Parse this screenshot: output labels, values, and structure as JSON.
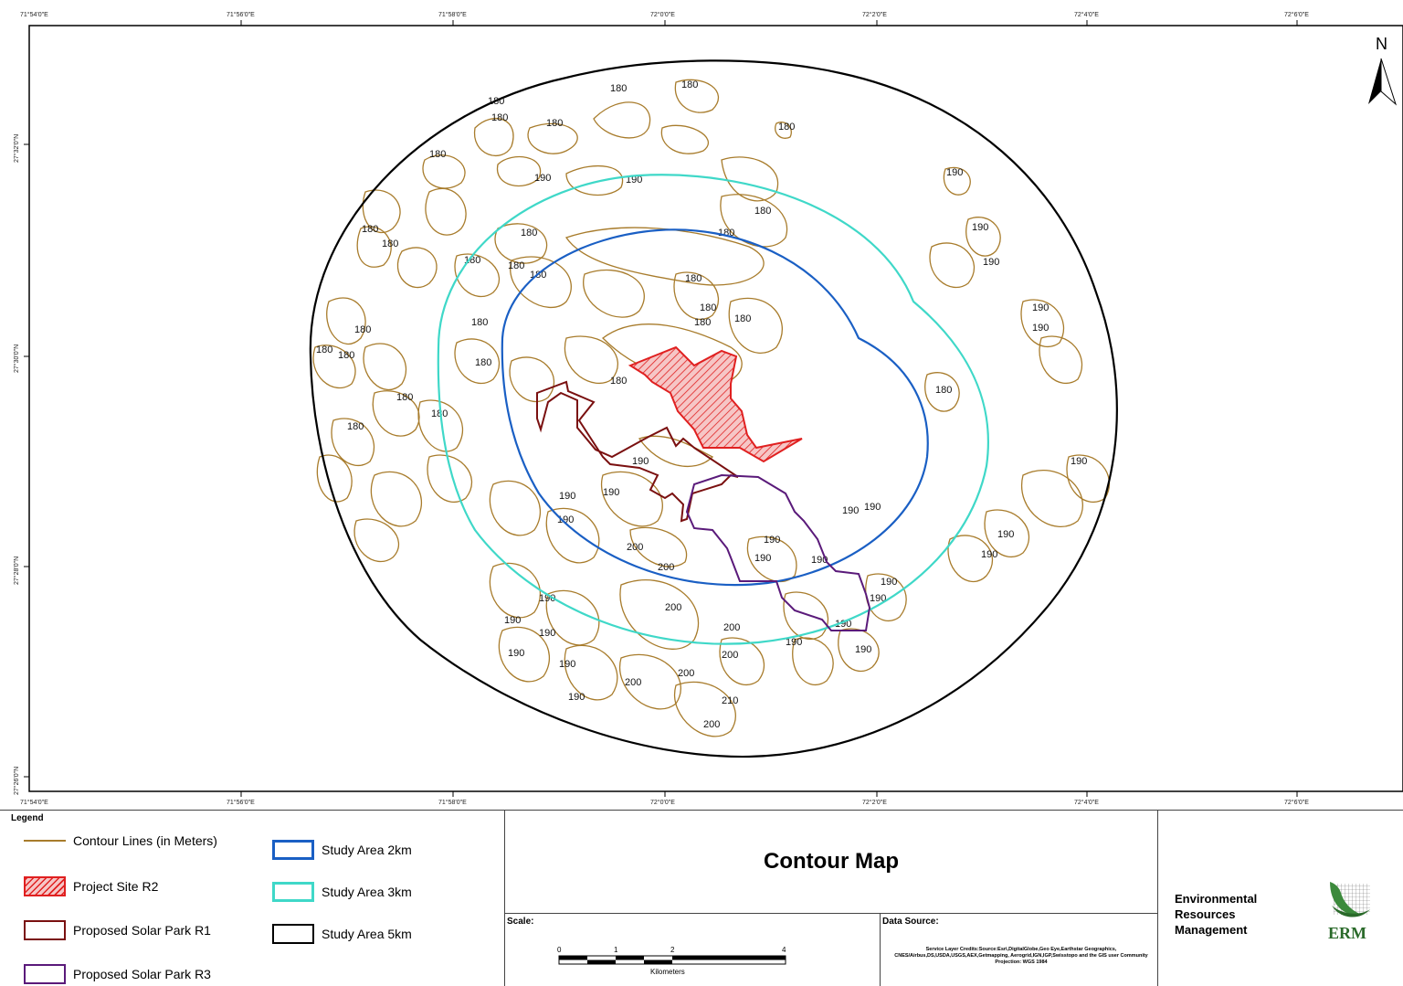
{
  "map": {
    "north_label": "N",
    "longitude_ticks": [
      "71°54'0\"E",
      "71°56'0\"E",
      "71°58'0\"E",
      "72°0'0\"E",
      "72°2'0\"E",
      "72°4'0\"E",
      "72°6'0\"E"
    ],
    "latitude_ticks": [
      "27°32'0\"N",
      "27°30'0\"N",
      "27°28'0\"N",
      "27°26'0\"N"
    ],
    "contour_labels": [
      "180",
      "190",
      "200",
      "210"
    ],
    "colors": {
      "contour": "#a87c2c",
      "project_site": "#e02020",
      "solar_park_r1": "#7a1010",
      "solar_park_r3": "#5a1a7a",
      "study_area_2km": "#1a5fc4",
      "study_area_3km": "#3fd8c8",
      "study_area_5km": "#000000"
    }
  },
  "legend": {
    "title": "Legend",
    "items": [
      "Contour Lines (in Meters)",
      "Project Site R2",
      "Proposed Solar Park R1",
      "Proposed Solar Park R3",
      "Study Area 2km",
      "Study Area 3km",
      "Study Area 5km"
    ]
  },
  "title": "Contour Map",
  "scale": {
    "label": "Scale:",
    "ticks": [
      "0",
      "1",
      "2",
      "4"
    ],
    "unit": "Kilometers"
  },
  "data_source": {
    "label": "Data Source:",
    "credits": "Service Layer Credits:Source:Esri,DigitalGlobe,Geo Eye,Earthstar Geographics, CNES/Airbus,DS,USDA,USGS,AEX,Getmapping, Aerogrid,IGN,IGP,Swisstopo and the GIS user Community Projection: WGS 1984"
  },
  "organization": {
    "name": "Environmental Resources Management",
    "logo_text": "ERM"
  }
}
